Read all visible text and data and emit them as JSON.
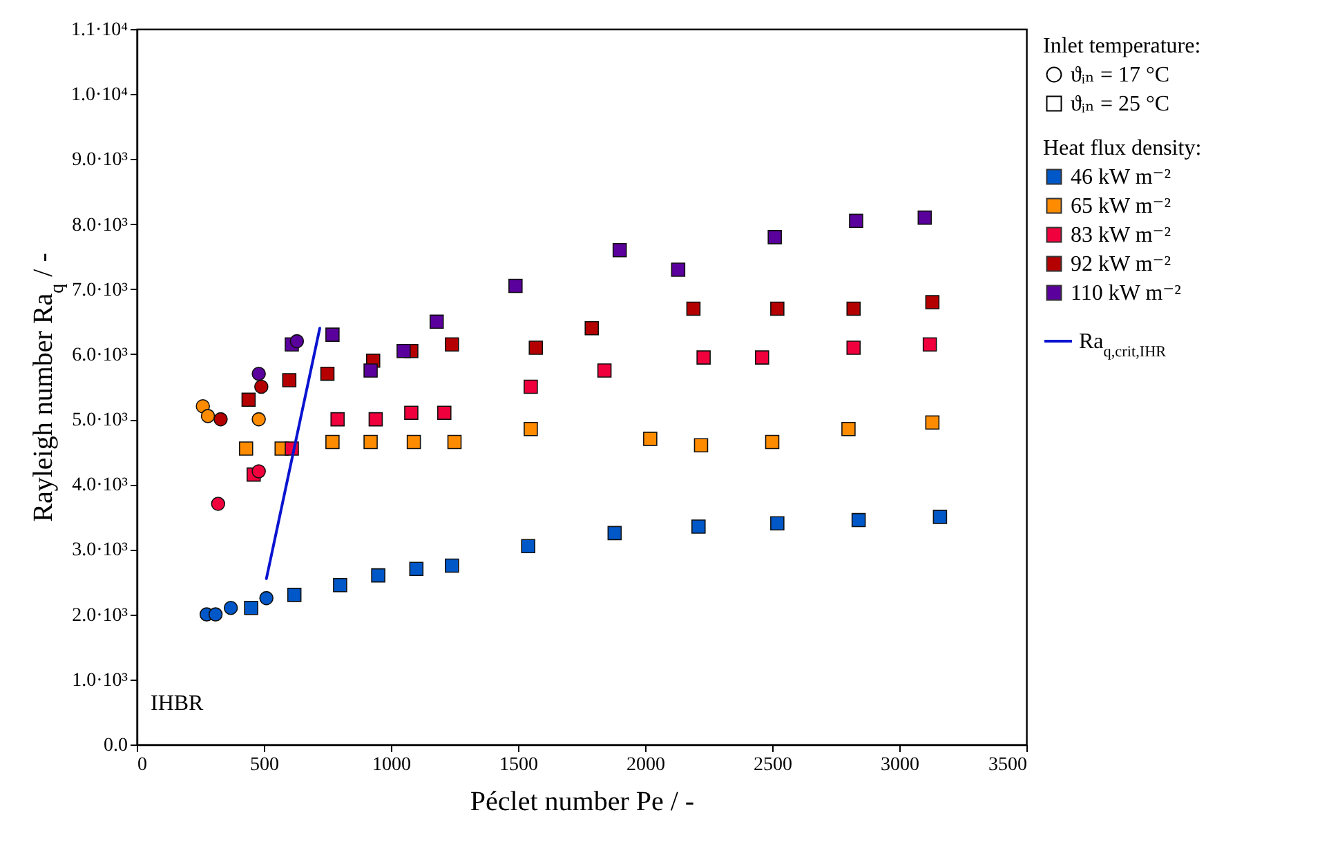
{
  "chart_data": {
    "type": "scatter",
    "xlabel": "Péclet number Pe / -",
    "ylabel": "Rayleigh number Ra$_{q}$ / -",
    "legend_title": "Heat flux density:",
    "legend": "right",
    "grid": false,
    "xlim": [
      0,
      3500
    ],
    "xticks": [
      0,
      500,
      1000,
      1500,
      2000,
      2500,
      3000,
      3500
    ],
    "ylim": [
      0,
      11000
    ],
    "yticks": [
      {
        "value": 0,
        "label": "0.0"
      },
      {
        "value": 1000,
        "label": "1.0·10³"
      },
      {
        "value": 2000,
        "label": "2.0·10³"
      },
      {
        "value": 3000,
        "label": "3.0·10³"
      },
      {
        "value": 4000,
        "label": "4.0·10³"
      },
      {
        "value": 5000,
        "label": "5.0·10³"
      },
      {
        "value": 6000,
        "label": "6.0·10³"
      },
      {
        "value": 7000,
        "label": "7.0·10³"
      },
      {
        "value": 8000,
        "label": "8.0·10³"
      },
      {
        "value": 9000,
        "label": "9.0·10³"
      },
      {
        "value": 10000,
        "label": "1.0·10⁴"
      },
      {
        "value": 11000,
        "label": "1.1·10⁴"
      }
    ],
    "annotations": [
      "Inlet temperature:",
      "ϑᵢₙ = 17 °C",
      "ϑᵢₙ = 25 °C",
      "IHBR"
    ],
    "series": [
      {
        "type": "scatter",
        "marker": "circle",
        "color": "#0057c8",
        "x": [
          275,
          310,
          370,
          510
        ],
        "values": [
          2000,
          2000,
          2100,
          2250
        ]
      },
      {
        "type": "scatter",
        "marker": "square",
        "name": "46 kW m⁻²",
        "color": "#0057c8",
        "x": [
          450,
          620,
          800,
          950,
          1100,
          1240,
          1540,
          1880,
          2210,
          2520,
          2840,
          3160
        ],
        "values": [
          2100,
          2300,
          2450,
          2600,
          2700,
          2750,
          3050,
          3250,
          3350,
          3400,
          3450,
          3500
        ]
      },
      {
        "type": "scatter",
        "marker": "circle",
        "color": "#ff8c00",
        "x": [
          260,
          280,
          480
        ],
        "values": [
          5200,
          5050,
          5000
        ]
      },
      {
        "type": "scatter",
        "marker": "square",
        "name": "65 kW m⁻²",
        "color": "#ff8c00",
        "x": [
          430,
          570,
          770,
          920,
          1090,
          1250,
          1550,
          2020,
          2220,
          2500,
          2800,
          3130
        ],
        "values": [
          4550,
          4550,
          4650,
          4650,
          4650,
          4650,
          4850,
          4700,
          4600,
          4650,
          4850,
          4950
        ]
      },
      {
        "type": "scatter",
        "marker": "circle",
        "color": "#f0003c",
        "x": [
          320,
          480
        ],
        "values": [
          3700,
          4200
        ]
      },
      {
        "type": "scatter",
        "marker": "square",
        "name": "83 kW m⁻²",
        "color": "#f0003c",
        "x": [
          460,
          610,
          790,
          940,
          1080,
          1210,
          1550,
          1840,
          2230,
          2460,
          2820,
          3120
        ],
        "values": [
          4150,
          4550,
          5000,
          5000,
          5100,
          5100,
          5500,
          5750,
          5950,
          5950,
          6100,
          6150
        ]
      },
      {
        "type": "scatter",
        "marker": "circle",
        "color": "#b40000",
        "x": [
          330,
          490
        ],
        "values": [
          5000,
          5500
        ]
      },
      {
        "type": "scatter",
        "marker": "square",
        "name": "92 kW m⁻²",
        "color": "#b40000",
        "x": [
          440,
          600,
          750,
          930,
          1080,
          1240,
          1570,
          1790,
          2190,
          2520,
          2820,
          3130
        ],
        "values": [
          5300,
          5600,
          5700,
          5900,
          6050,
          6150,
          6100,
          6400,
          6700,
          6700,
          6700,
          6800
        ]
      },
      {
        "type": "scatter",
        "marker": "circle",
        "color": "#5a009c",
        "x": [
          480,
          630
        ],
        "values": [
          5700,
          6200
        ]
      },
      {
        "type": "scatter",
        "marker": "square",
        "name": "110 kW m⁻²",
        "color": "#5a009c",
        "x": [
          610,
          770,
          920,
          1050,
          1180,
          1490,
          1900,
          2130,
          2510,
          2830,
          3100
        ],
        "values": [
          6150,
          6300,
          5750,
          6050,
          6500,
          7050,
          7600,
          7300,
          7800,
          8050,
          8100
        ]
      },
      {
        "type": "line",
        "name": "Ra$_{q,crit,IHR}$",
        "color": "#0a14d0",
        "x": [
          510,
          720
        ],
        "values": [
          2550,
          6400
        ]
      }
    ]
  }
}
